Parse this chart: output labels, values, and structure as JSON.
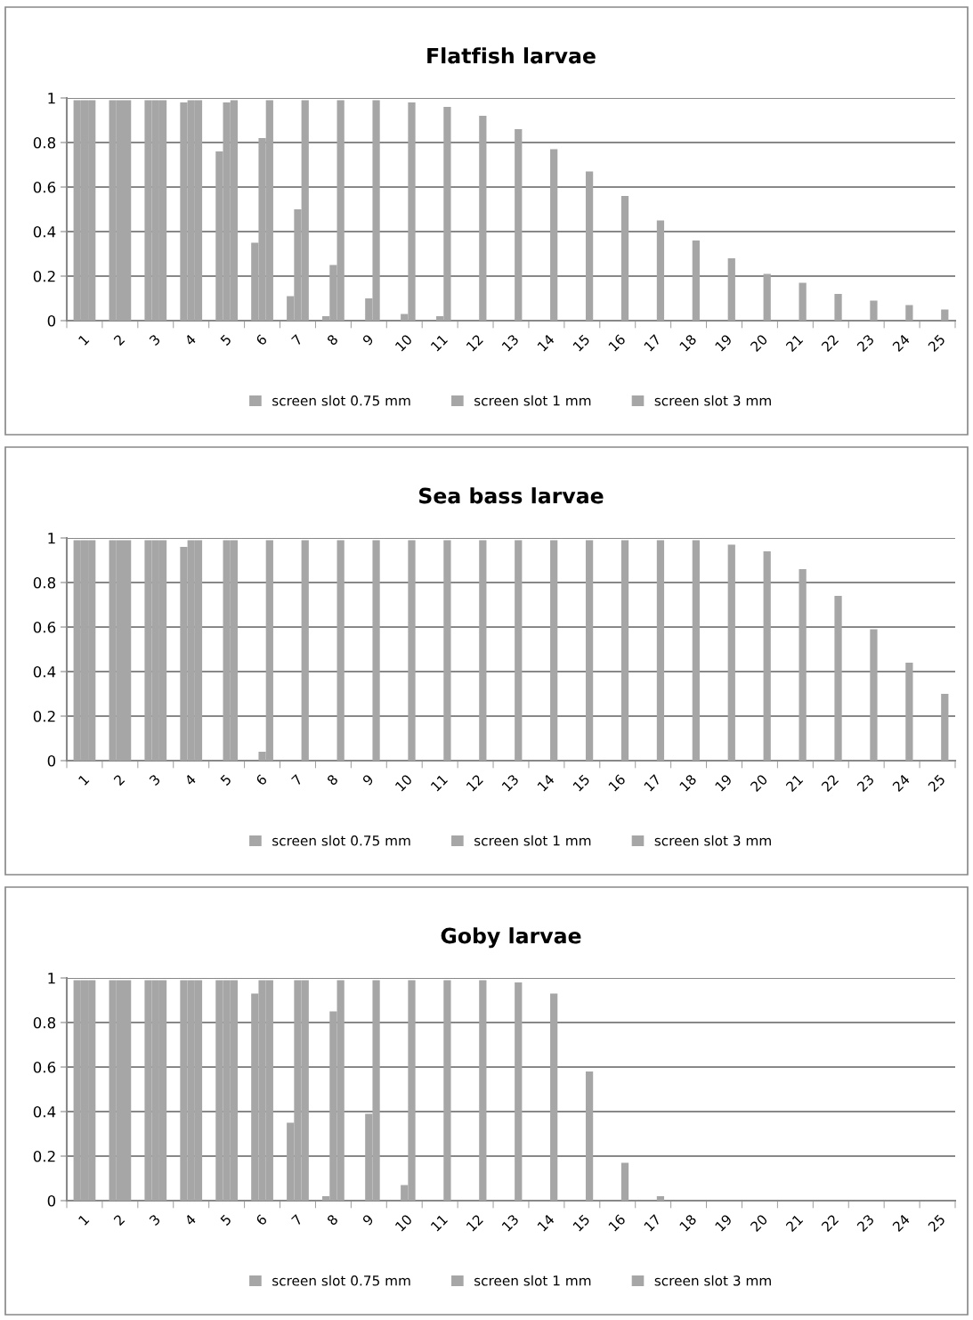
{
  "chart_data": [
    {
      "type": "bar",
      "title": "Flatfish larvae",
      "categories": [
        "1",
        "2",
        "3",
        "4",
        "5",
        "6",
        "7",
        "8",
        "9",
        "10",
        "11",
        "12",
        "13",
        "14",
        "15",
        "16",
        "17",
        "18",
        "19",
        "20",
        "21",
        "22",
        "23",
        "24",
        "25"
      ],
      "ylim": [
        0,
        1
      ],
      "yticks": [
        0,
        0.2,
        0.4,
        0.6,
        0.8,
        1
      ],
      "grid": "y",
      "legend": "bottom",
      "series": [
        {
          "name": "screen slot 0.75 mm",
          "color": "#a6a6a6",
          "values": [
            0.99,
            0.99,
            0.99,
            0.98,
            0.76,
            0.35,
            0.11,
            0.02,
            0,
            0,
            0,
            0,
            0,
            0,
            0,
            0,
            0,
            0,
            0,
            0,
            0,
            0,
            0,
            0,
            0
          ]
        },
        {
          "name": "screen slot 1 mm",
          "color": "#a6a6a6",
          "values": [
            0.99,
            0.99,
            0.99,
            0.99,
            0.98,
            0.82,
            0.5,
            0.25,
            0.1,
            0.03,
            0.02,
            0,
            0,
            0,
            0,
            0,
            0,
            0,
            0,
            0,
            0,
            0,
            0,
            0,
            0
          ]
        },
        {
          "name": "screen slot 3 mm",
          "color": "#a6a6a6",
          "values": [
            0.99,
            0.99,
            0.99,
            0.99,
            0.99,
            0.99,
            0.99,
            0.99,
            0.99,
            0.98,
            0.96,
            0.92,
            0.86,
            0.77,
            0.67,
            0.56,
            0.45,
            0.36,
            0.28,
            0.21,
            0.17,
            0.12,
            0.09,
            0.07,
            0.05
          ]
        }
      ]
    },
    {
      "type": "bar",
      "title": "Sea bass larvae",
      "categories": [
        "1",
        "2",
        "3",
        "4",
        "5",
        "6",
        "7",
        "8",
        "9",
        "10",
        "11",
        "12",
        "13",
        "14",
        "15",
        "16",
        "17",
        "18",
        "19",
        "20",
        "21",
        "22",
        "23",
        "24",
        "25"
      ],
      "ylim": [
        0,
        1
      ],
      "yticks": [
        0,
        0.2,
        0.4,
        0.6,
        0.8,
        1
      ],
      "grid": "y",
      "legend": "bottom",
      "series": [
        {
          "name": "screen slot 0.75 mm",
          "color": "#a6a6a6",
          "values": [
            0.99,
            0.99,
            0.99,
            0.96,
            0,
            0,
            0,
            0,
            0,
            0,
            0,
            0,
            0,
            0,
            0,
            0,
            0,
            0,
            0,
            0,
            0,
            0,
            0,
            0,
            0
          ]
        },
        {
          "name": "screen slot 1 mm",
          "color": "#a6a6a6",
          "values": [
            0.99,
            0.99,
            0.99,
            0.99,
            0.99,
            0.04,
            0,
            0,
            0,
            0,
            0,
            0,
            0,
            0,
            0,
            0,
            0,
            0,
            0,
            0,
            0,
            0,
            0,
            0,
            0
          ]
        },
        {
          "name": "screen slot 3 mm",
          "color": "#a6a6a6",
          "values": [
            0.99,
            0.99,
            0.99,
            0.99,
            0.99,
            0.99,
            0.99,
            0.99,
            0.99,
            0.99,
            0.99,
            0.99,
            0.99,
            0.99,
            0.99,
            0.99,
            0.99,
            0.99,
            0.97,
            0.94,
            0.86,
            0.74,
            0.59,
            0.44,
            0.3
          ]
        }
      ]
    },
    {
      "type": "bar",
      "title": "Goby larvae",
      "categories": [
        "1",
        "2",
        "3",
        "4",
        "5",
        "6",
        "7",
        "8",
        "9",
        "10",
        "11",
        "12",
        "13",
        "14",
        "15",
        "16",
        "17",
        "18",
        "19",
        "20",
        "21",
        "22",
        "23",
        "24",
        "25"
      ],
      "ylim": [
        0,
        1
      ],
      "yticks": [
        0,
        0.2,
        0.4,
        0.6,
        0.8,
        1
      ],
      "grid": "y",
      "legend": "bottom",
      "series": [
        {
          "name": "screen slot 0.75 mm",
          "color": "#a6a6a6",
          "values": [
            0.99,
            0.99,
            0.99,
            0.99,
            0.99,
            0.93,
            0.35,
            0.02,
            0,
            0,
            0,
            0,
            0,
            0,
            0,
            0,
            0,
            0,
            0,
            0,
            0,
            0,
            0,
            0,
            0
          ]
        },
        {
          "name": "screen slot 1 mm",
          "color": "#a6a6a6",
          "values": [
            0.99,
            0.99,
            0.99,
            0.99,
            0.99,
            0.99,
            0.99,
            0.85,
            0.39,
            0.07,
            0,
            0,
            0,
            0,
            0,
            0,
            0,
            0,
            0,
            0,
            0,
            0,
            0,
            0,
            0
          ]
        },
        {
          "name": "screen slot 3 mm",
          "color": "#a6a6a6",
          "values": [
            0.99,
            0.99,
            0.99,
            0.99,
            0.99,
            0.99,
            0.99,
            0.99,
            0.99,
            0.99,
            0.99,
            0.99,
            0.98,
            0.93,
            0.58,
            0.17,
            0.02,
            0,
            0,
            0,
            0,
            0,
            0,
            0,
            0
          ]
        }
      ]
    }
  ]
}
